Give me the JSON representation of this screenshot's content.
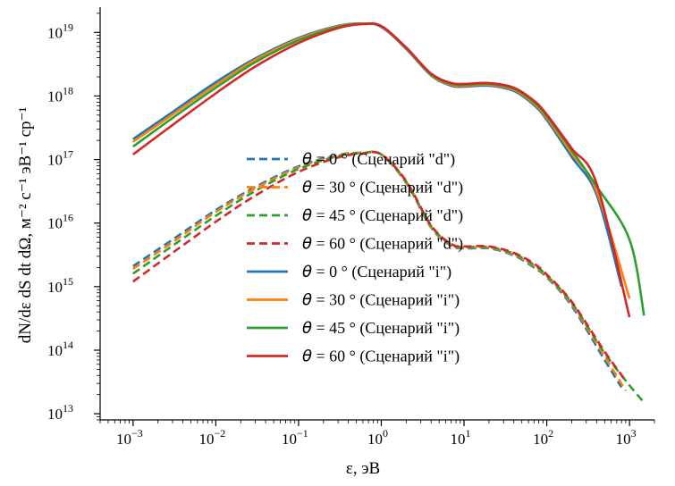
{
  "chart_data": {
    "type": "line",
    "xlabel": "ε, эВ",
    "ylabel": "dN/dε dS dt dΩ, м⁻² с⁻¹ эВ⁻¹ ср⁻¹",
    "x_scale": "log",
    "y_scale": "log",
    "xlim": [
      0.0004,
      2000
    ],
    "ylim": [
      8000000000000.0,
      2.5e+19
    ],
    "x_tick_exponents": [
      -3,
      -2,
      -1,
      0,
      1,
      2,
      3
    ],
    "y_tick_exponents": [
      13,
      14,
      15,
      16,
      17,
      18,
      19
    ],
    "tick_base": "10",
    "legend_location": "center",
    "colors": {
      "0": "#1f77b4",
      "30": "#ff7f0e",
      "45": "#2ca02c",
      "60": "#d62728"
    },
    "series": [
      {
        "name": "θ = 0 ° (Сценарий \"d\")",
        "theta_label": "θ",
        "suffix": " = 0 °  (Сценарий \"d\")",
        "angle": 0,
        "style": "dashed",
        "color": "#1f77b4",
        "x": [
          0.001,
          0.003,
          0.01,
          0.03,
          0.1,
          0.3,
          0.6,
          1.0,
          2,
          4,
          7,
          10,
          20,
          40,
          70,
          100,
          200,
          500,
          800
        ],
        "y": [
          2100000000000000.0,
          5500000000000000.0,
          1.6e+16,
          3.7e+16,
          7.8e+16,
          1.18e+17,
          1.28e+17,
          1.2e+17,
          4.3e+16,
          8500000000000000.0,
          4400000000000000.0,
          4000000000000000.0,
          4000000000000000.0,
          3100000000000000.0,
          2000000000000000.0,
          1400000000000000.0,
          500000000000000.0,
          70000000000000.0,
          26000000000000.0
        ]
      },
      {
        "name": "θ = 30 ° (Сценарий \"d\")",
        "theta_label": "θ",
        "suffix": " = 30 °  (Сценарий \"d\")",
        "angle": 30,
        "style": "dashed",
        "color": "#ff7f0e",
        "x": [
          0.001,
          0.003,
          0.01,
          0.03,
          0.1,
          0.3,
          0.6,
          1.0,
          2,
          4,
          7,
          10,
          20,
          40,
          70,
          100,
          200,
          500,
          900
        ],
        "y": [
          1900000000000000.0,
          5000000000000000.0,
          1.5e+16,
          3.5e+16,
          7.5e+16,
          1.16e+17,
          1.27e+17,
          1.2e+17,
          4.4e+16,
          8700000000000000.0,
          4500000000000000.0,
          4100000000000000.0,
          4100000000000000.0,
          3200000000000000.0,
          2100000000000000.0,
          1450000000000000.0,
          530000000000000.0,
          80000000000000.0,
          23000000000000.0
        ]
      },
      {
        "name": "θ = 45 ° (Сценарий \"d\")",
        "theta_label": "θ",
        "suffix": " = 45 °  (Сценарий \"d\")",
        "angle": 45,
        "style": "dashed",
        "color": "#2ca02c",
        "x": [
          0.001,
          0.003,
          0.01,
          0.03,
          0.1,
          0.3,
          0.6,
          1.0,
          2,
          4,
          7,
          10,
          20,
          40,
          70,
          100,
          200,
          500,
          1000,
          1500
        ],
        "y": [
          1600000000000000.0,
          4400000000000000.0,
          1.3e+16,
          3.2e+16,
          7.1e+16,
          1.13e+17,
          1.26e+17,
          1.2e+17,
          4.5e+16,
          9000000000000000.0,
          4600000000000000.0,
          4200000000000000.0,
          4200000000000000.0,
          3300000000000000.0,
          2200000000000000.0,
          1500000000000000.0,
          560000000000000.0,
          90000000000000.0,
          28000000000000.0,
          15000000000000.0
        ]
      },
      {
        "name": "θ = 60 ° (Сценарий \"d\")",
        "theta_label": "θ",
        "suffix": " = 60 °  (Сценарий \"d\")",
        "angle": 60,
        "style": "dashed",
        "color": "#d62728",
        "x": [
          0.001,
          0.003,
          0.01,
          0.03,
          0.1,
          0.3,
          0.6,
          1.0,
          2,
          4,
          7,
          10,
          20,
          40,
          70,
          100,
          200,
          500,
          900
        ],
        "y": [
          1200000000000000.0,
          3400000000000000.0,
          1.05e+16,
          2.7e+16,
          6.4e+16,
          1.08e+17,
          1.24e+17,
          1.2e+17,
          4.6e+16,
          9200000000000000.0,
          4700000000000000.0,
          4300000000000000.0,
          4300000000000000.0,
          3400000000000000.0,
          2300000000000000.0,
          1550000000000000.0,
          580000000000000.0,
          95000000000000.0,
          33000000000000.0
        ]
      },
      {
        "name": "θ = 0 ° (Сценарий \"i\")",
        "theta_label": "θ",
        "suffix": " = 0 °  (Сценарий \"i\")",
        "angle": 0,
        "style": "solid",
        "color": "#1f77b4",
        "x": [
          0.001,
          0.003,
          0.01,
          0.03,
          0.1,
          0.3,
          0.6,
          1.0,
          2,
          4,
          7,
          10,
          20,
          40,
          70,
          100,
          200,
          400,
          800
        ],
        "y": [
          2.1e+17,
          5.6e+17,
          1.65e+18,
          3.9e+18,
          8.2e+18,
          1.27e+19,
          1.38e+19,
          1.22e+19,
          5.5e+18,
          2.1e+18,
          1.45e+18,
          1.4e+18,
          1.45e+18,
          1.2e+18,
          7.2e+17,
          4.2e+17,
          1.1e+17,
          2.8e+16,
          1000000000000000.0
        ]
      },
      {
        "name": "θ = 30 ° (Сценарий \"i\")",
        "theta_label": "θ",
        "suffix": " = 30 °  (Сценарий \"i\")",
        "angle": 30,
        "style": "solid",
        "color": "#ff7f0e",
        "x": [
          0.001,
          0.003,
          0.01,
          0.03,
          0.1,
          0.3,
          0.6,
          1.0,
          2,
          4,
          7,
          10,
          20,
          40,
          70,
          100,
          200,
          400,
          1000
        ],
        "y": [
          1.9e+17,
          5.1e+17,
          1.5e+18,
          3.7e+18,
          7.9e+18,
          1.25e+19,
          1.38e+19,
          1.24e+19,
          5.6e+18,
          2.15e+18,
          1.5e+18,
          1.45e+18,
          1.5e+18,
          1.25e+18,
          7.6e+17,
          4.5e+17,
          1.25e+17,
          3.2e+16,
          650000000000000.0
        ]
      },
      {
        "name": "θ = 45 ° (Сценарий \"i\")",
        "theta_label": "θ",
        "suffix": " = 45 °  (Сценарий \"i\")",
        "angle": 45,
        "style": "solid",
        "color": "#2ca02c",
        "x": [
          0.001,
          0.003,
          0.01,
          0.03,
          0.1,
          0.3,
          0.6,
          1.0,
          2,
          4,
          7,
          10,
          20,
          40,
          70,
          100,
          200,
          400,
          1000,
          1500
        ],
        "y": [
          1.6e+17,
          4.5e+17,
          1.35e+18,
          3.4e+18,
          7.5e+18,
          1.22e+19,
          1.37e+19,
          1.25e+19,
          5.7e+18,
          2.2e+18,
          1.55e+18,
          1.5e+18,
          1.55e+18,
          1.3e+18,
          8e+17,
          4.8e+17,
          1.4e+17,
          3.8e+16,
          5500000000000000.0,
          350000000000000.0
        ]
      },
      {
        "name": "θ = 60 ° (Сценарий \"i\")",
        "theta_label": "θ",
        "suffix": " = 60 °  (Сценарий \"i\")",
        "angle": 60,
        "style": "solid",
        "color": "#d62728",
        "x": [
          0.001,
          0.003,
          0.01,
          0.03,
          0.1,
          0.3,
          0.6,
          1.0,
          2,
          4,
          7,
          10,
          20,
          40,
          70,
          100,
          200,
          400,
          1000
        ],
        "y": [
          1.2e+17,
          3.5e+17,
          1.1e+18,
          2.9e+18,
          6.8e+18,
          1.17e+19,
          1.35e+19,
          1.26e+19,
          5.8e+18,
          2.25e+18,
          1.6e+18,
          1.55e+18,
          1.6e+18,
          1.35e+18,
          8.4e+17,
          5.1e+17,
          1.5e+17,
          4.2e+16,
          330000000000000.0
        ]
      }
    ]
  }
}
